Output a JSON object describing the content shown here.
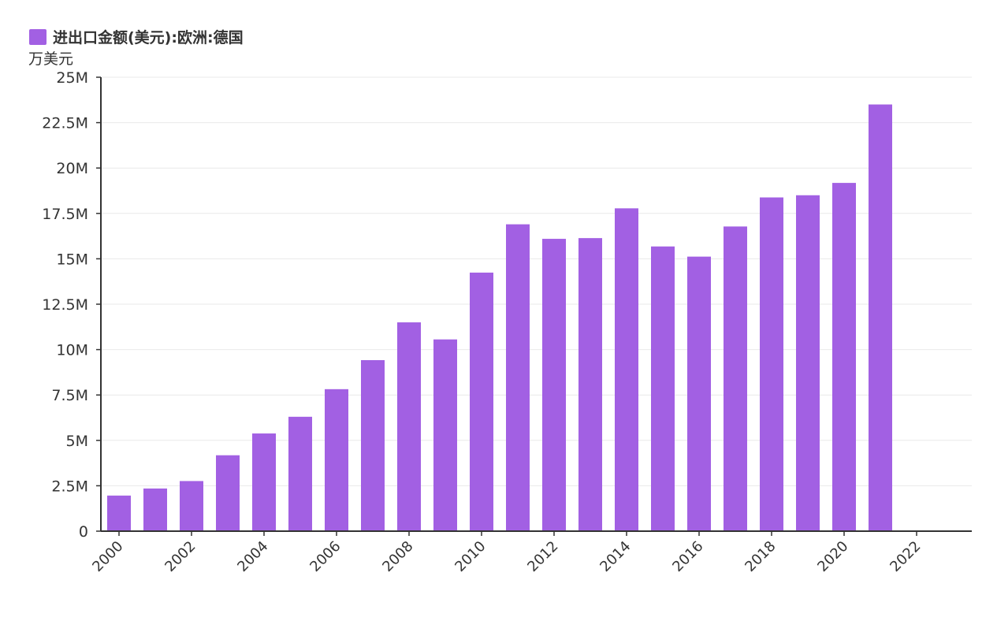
{
  "legend": {
    "label": "进出口金额(美元):欧洲:德国",
    "color": "#a260e3"
  },
  "unit": "万美元",
  "chart_data": {
    "type": "bar",
    "categories": [
      "2000",
      "2001",
      "2002",
      "2003",
      "2004",
      "2005",
      "2006",
      "2007",
      "2008",
      "2009",
      "2010",
      "2011",
      "2012",
      "2013",
      "2014",
      "2015",
      "2016",
      "2017",
      "2018",
      "2019",
      "2020",
      "2021",
      "2022",
      "2023"
    ],
    "series": [
      {
        "values": [
          1.96,
          2.35,
          2.76,
          4.18,
          5.38,
          6.3,
          7.82,
          9.42,
          11.5,
          10.56,
          14.24,
          16.9,
          16.1,
          16.14,
          17.78,
          15.68,
          15.12,
          16.78,
          18.38,
          18.5,
          19.18,
          23.5,
          null,
          null
        ]
      }
    ],
    "x_tick_labels": [
      "2000",
      "2002",
      "2004",
      "2006",
      "2008",
      "2010",
      "2012",
      "2014",
      "2016",
      "2018",
      "2020",
      "2022"
    ],
    "y_tick_labels": [
      "0",
      "2.5M",
      "5M",
      "7.5M",
      "10M",
      "12.5M",
      "15M",
      "17.5M",
      "20M",
      "22.5M",
      "25M"
    ],
    "ylim": [
      0,
      25
    ],
    "grid": true,
    "bar_color": "#a260e3",
    "legend_position": "top-left"
  }
}
